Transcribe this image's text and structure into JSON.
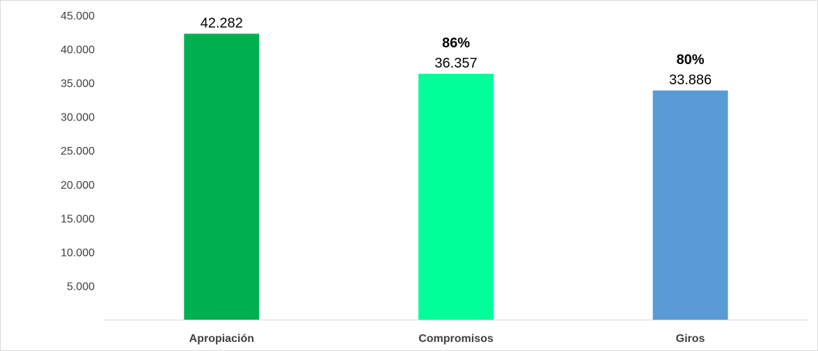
{
  "chart_data": {
    "type": "bar",
    "categories": [
      "Apropiación",
      "Compromisos",
      "Giros"
    ],
    "values": [
      42282,
      36357,
      33886
    ],
    "value_labels": [
      "42.282",
      "36.357",
      "33.886"
    ],
    "percent_labels": [
      "",
      "86%",
      "80%"
    ],
    "colors": [
      "#00B050",
      "#00FF99",
      "#5B9BD5"
    ],
    "ylim": [
      0,
      45000
    ],
    "yticks": [
      5000,
      10000,
      15000,
      20000,
      25000,
      30000,
      35000,
      40000,
      45000
    ],
    "ytick_labels": [
      "5.000",
      "10.000",
      "15.000",
      "20.000",
      "25.000",
      "30.000",
      "35.000",
      "40.000",
      "45.000"
    ],
    "title": "",
    "xlabel": "",
    "ylabel": "",
    "grid": false,
    "legend": "none"
  }
}
